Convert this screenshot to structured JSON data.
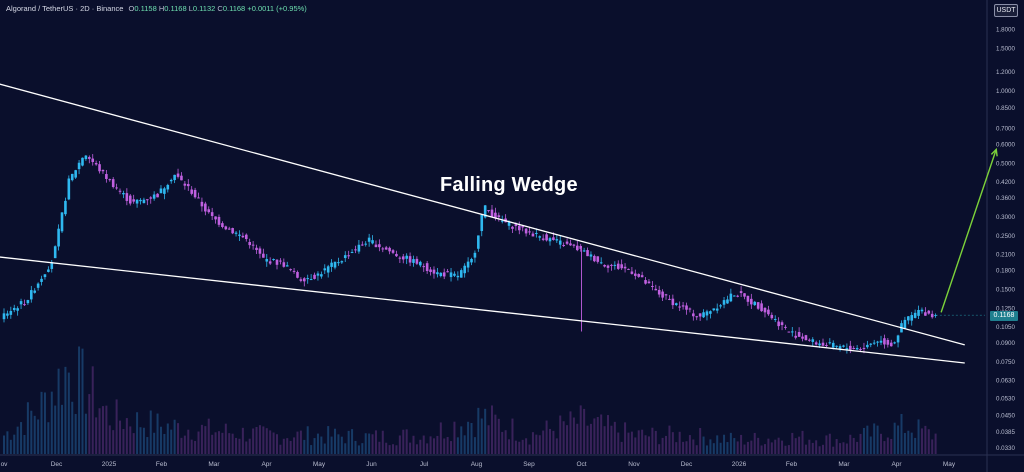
{
  "header": {
    "pair": "Algorand / TetherUS · 2D · Binance",
    "o_label": "O",
    "o_value": "0.1158",
    "h_label": "H",
    "h_value": "0.1168",
    "l_label": "L",
    "l_value": "0.1132",
    "c_label": "C",
    "c_value": "0.1168",
    "change": "+0.0011 (+0.95%)"
  },
  "currency": "USDT",
  "last_price": "0.1168",
  "annotation": "Falling Wedge",
  "colors": {
    "background": "#0a0f2c",
    "up": "#2fb8f0",
    "down": "#c060e0",
    "trendline": "#ffffff",
    "projection": "#7cd23a",
    "price_tag": "#1f7f8f"
  },
  "chart_data": {
    "type": "candlestick",
    "y_scale": "log",
    "ylim": [
      0.031,
      2.0
    ],
    "x_ticks": [
      "ov",
      "Dec",
      "2025",
      "Feb",
      "Mar",
      "Apr",
      "May",
      "Jun",
      "Jul",
      "Aug",
      "Sep",
      "Oct",
      "Nov",
      "Dec",
      "2026",
      "Feb",
      "Mar",
      "Apr",
      "May"
    ],
    "y_ticks": [
      "1.8000",
      "1.5000",
      "1.2000",
      "1.0000",
      "0.8500",
      "0.7000",
      "0.6000",
      "0.5000",
      "0.4200",
      "0.3600",
      "0.3000",
      "0.2500",
      "0.2100",
      "0.1800",
      "0.1500",
      "0.1250",
      "0.1050",
      "0.0900",
      "0.0750",
      "0.0630",
      "0.0530",
      "0.0450",
      "0.0385",
      "0.0330"
    ],
    "price_path": [
      [
        0,
        0.115
      ],
      [
        0.5,
        0.135
      ],
      [
        1.0,
        0.2
      ],
      [
        1.3,
        0.42
      ],
      [
        1.6,
        0.55
      ],
      [
        2.0,
        0.44
      ],
      [
        2.5,
        0.34
      ],
      [
        3.0,
        0.37
      ],
      [
        3.3,
        0.45
      ],
      [
        3.6,
        0.39
      ],
      [
        4.0,
        0.3
      ],
      [
        4.3,
        0.27
      ],
      [
        4.7,
        0.24
      ],
      [
        5.0,
        0.2
      ],
      [
        5.4,
        0.19
      ],
      [
        5.7,
        0.165
      ],
      [
        6.0,
        0.17
      ],
      [
        6.5,
        0.2
      ],
      [
        7.0,
        0.24
      ],
      [
        7.5,
        0.21
      ],
      [
        8.0,
        0.19
      ],
      [
        8.3,
        0.175
      ],
      [
        8.7,
        0.17
      ],
      [
        9.0,
        0.2
      ],
      [
        9.2,
        0.33
      ],
      [
        9.5,
        0.29
      ],
      [
        10.0,
        0.26
      ],
      [
        10.5,
        0.24
      ],
      [
        11.0,
        0.22
      ],
      [
        11.5,
        0.19
      ],
      [
        12.0,
        0.18
      ],
      [
        12.5,
        0.145
      ],
      [
        13.0,
        0.125
      ],
      [
        13.3,
        0.115
      ],
      [
        13.7,
        0.13
      ],
      [
        14.0,
        0.145
      ],
      [
        14.5,
        0.125
      ],
      [
        15.0,
        0.1
      ],
      [
        15.5,
        0.09
      ],
      [
        16.0,
        0.086
      ],
      [
        16.4,
        0.085
      ],
      [
        16.7,
        0.092
      ],
      [
        17.0,
        0.088
      ],
      [
        17.2,
        0.11
      ],
      [
        17.5,
        0.122
      ],
      [
        17.75,
        0.117
      ]
    ],
    "spikes": [
      [
        11.0,
        0.1
      ]
    ],
    "trendlines": [
      {
        "name": "upper",
        "from": [
          -0.2,
          1.08
        ],
        "to": [
          18.3,
          0.088
        ]
      },
      {
        "name": "lower",
        "from": [
          -0.2,
          0.205
        ],
        "to": [
          18.3,
          0.074
        ]
      }
    ],
    "projection": {
      "from": [
        17.85,
        0.12
      ],
      "to": [
        18.9,
        0.57
      ]
    },
    "volume_relative": [
      [
        0,
        0.2
      ],
      [
        0.7,
        0.5
      ],
      [
        1.2,
        0.9
      ],
      [
        1.6,
        0.7
      ],
      [
        2.0,
        0.4
      ],
      [
        3.0,
        0.3
      ],
      [
        4.0,
        0.25
      ],
      [
        5.0,
        0.2
      ],
      [
        6.0,
        0.2
      ],
      [
        7.0,
        0.18
      ],
      [
        8.0,
        0.2
      ],
      [
        9.1,
        0.4
      ],
      [
        10.0,
        0.2
      ],
      [
        11.0,
        0.35
      ],
      [
        12.0,
        0.2
      ],
      [
        13.0,
        0.2
      ],
      [
        14.0,
        0.15
      ],
      [
        15.0,
        0.18
      ],
      [
        16.0,
        0.15
      ],
      [
        17.2,
        0.3
      ],
      [
        17.7,
        0.2
      ]
    ]
  }
}
